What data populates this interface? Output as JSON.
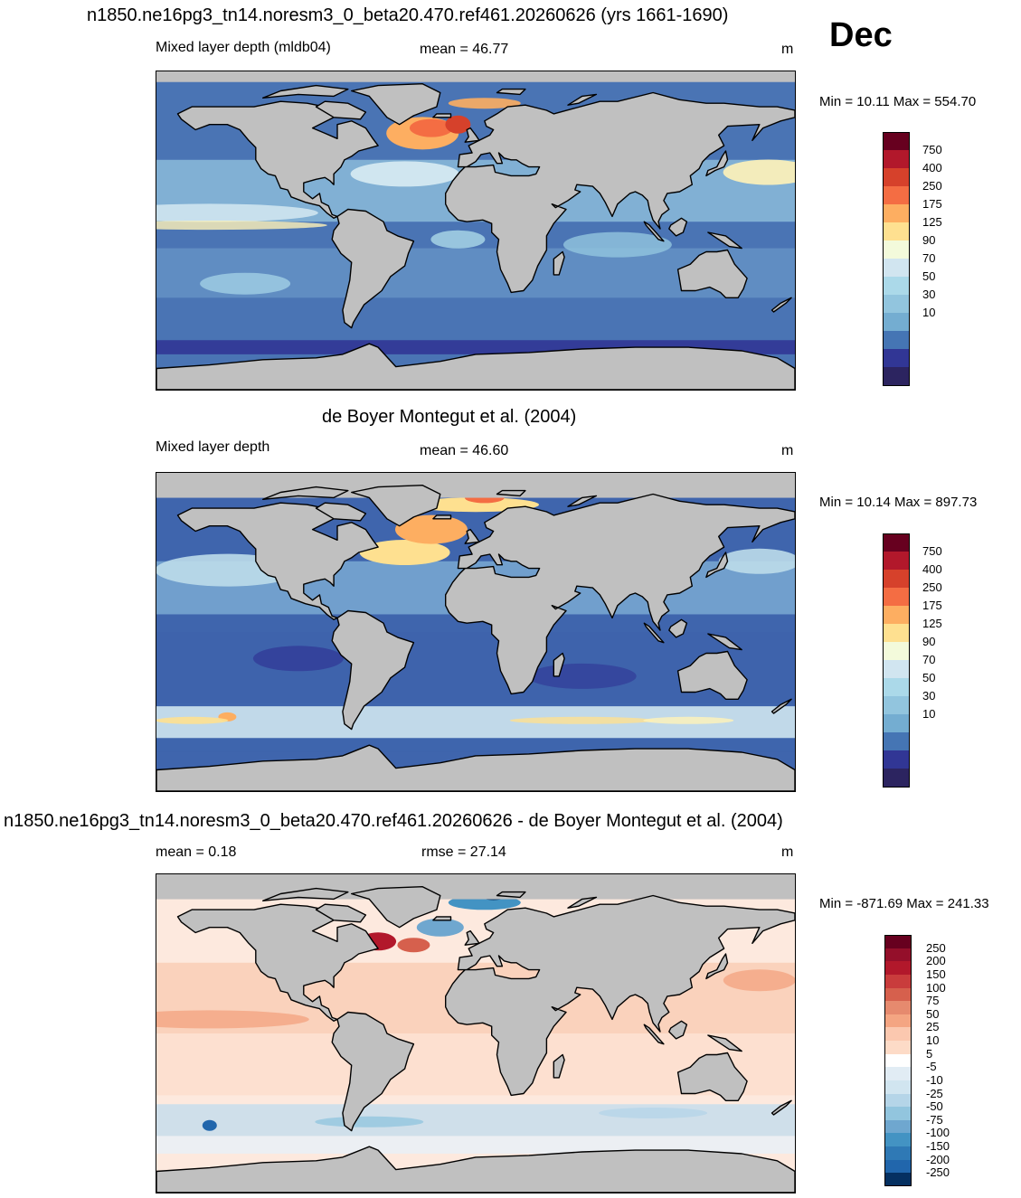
{
  "header": {
    "title": "n1850.ne16pg3_tn14.noresm3_0_beta20.470.ref461.20260626 (yrs 1661-1690)",
    "month": "Dec"
  },
  "panels": [
    {
      "id": "model",
      "title": "",
      "left_label": "Mixed layer depth (mldb04)",
      "center_label": "mean =  46.77",
      "units": "m",
      "minmax": "Min =  10.11 Max = 554.70",
      "colorbar": {
        "labels": [
          "750",
          "400",
          "250",
          "175",
          "125",
          "90",
          "70",
          "50",
          "30",
          "10"
        ],
        "colors": [
          "#67001f",
          "#b2182b",
          "#d6412b",
          "#f46d43",
          "#fdae61",
          "#fee090",
          "#f3fadb",
          "#d1e5f0",
          "#abd9e9",
          "#92c5de",
          "#74add1",
          "#4575b4",
          "#313695",
          "#2c2460"
        ]
      },
      "map_base": "#4a74b4"
    },
    {
      "id": "obs",
      "title": "de Boyer Montegut et al. (2004)",
      "left_label": "Mixed layer depth",
      "center_label": "mean =  46.60",
      "units": "m",
      "minmax": "Min =  10.14 Max = 897.73",
      "colorbar": {
        "labels": [
          "750",
          "400",
          "250",
          "175",
          "125",
          "90",
          "70",
          "50",
          "30",
          "10"
        ],
        "colors": [
          "#67001f",
          "#b2182b",
          "#d6412b",
          "#f46d43",
          "#fdae61",
          "#fee090",
          "#f3fadb",
          "#d1e5f0",
          "#abd9e9",
          "#92c5de",
          "#74add1",
          "#4575b4",
          "#313695",
          "#2c2460"
        ]
      },
      "map_base": "#3f65ad"
    },
    {
      "id": "diff",
      "title": "n1850.ne16pg3_tn14.noresm3_0_beta20.470.ref461.20260626 - de Boyer Montegut et al. (2004)",
      "left_label": "mean =   0.18",
      "center_label": "rmse =  27.14",
      "units": "m",
      "minmax": "Min = -871.69 Max = 241.33",
      "colorbar": {
        "labels": [
          "250",
          "200",
          "150",
          "100",
          "75",
          "50",
          "25",
          "10",
          "5",
          "-5",
          "-10",
          "-25",
          "-50",
          "-75",
          "-100",
          "-150",
          "-200",
          "-250"
        ],
        "colors": [
          "#67001f",
          "#940f2a",
          "#b2182b",
          "#c93c3c",
          "#d6604d",
          "#e68a6e",
          "#f4a582",
          "#fbc8af",
          "#fddbc7",
          "#ffffff",
          "#e1ecf4",
          "#d1e5f0",
          "#b5d5e8",
          "#92c5de",
          "#6fa7cf",
          "#4393c3",
          "#2f79b5",
          "#2166ac",
          "#053061"
        ]
      },
      "map_base": "#fde9de"
    }
  ]
}
